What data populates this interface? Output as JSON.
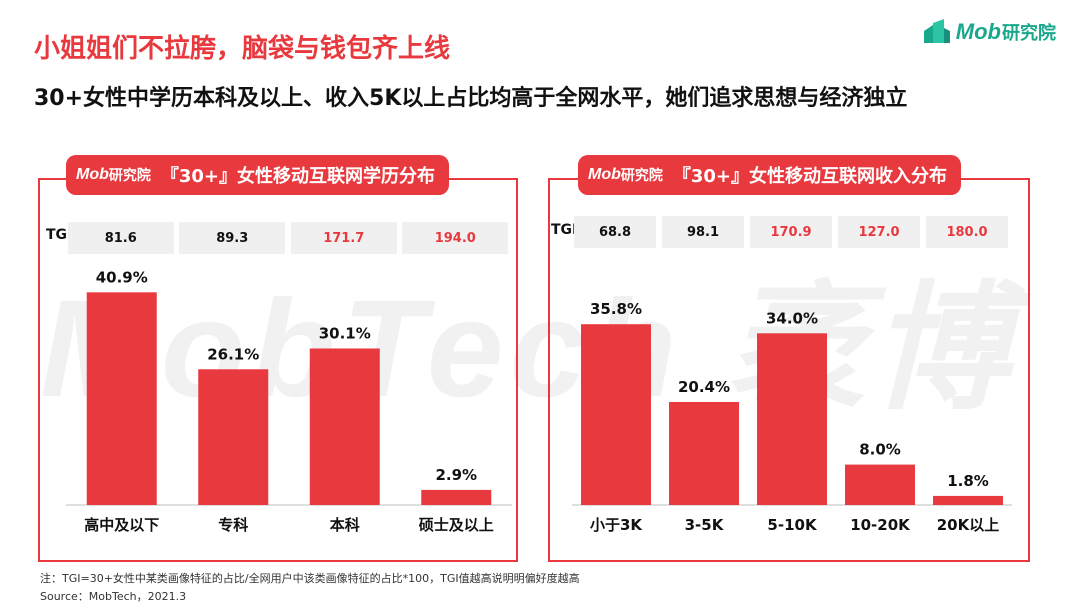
{
  "watermark": "MobTech 袤博",
  "brand": {
    "logo_text": "Mob",
    "logo_cn": "研究院"
  },
  "title": "小姐姐们不拉胯，脑袋与钱包齐上线",
  "subtitle": "30+女性中学历本科及以上、收入5K以上占比均高于全网水平，她们追求思想与经济独立",
  "colors": {
    "accent": "#e8393e",
    "brand_green": "#1aa88c",
    "tgi_high": "#e8393e",
    "tgi_normal": "#111111"
  },
  "chart_data": [
    {
      "type": "bar",
      "title": "『30+』女性移动互联网学历分布",
      "categories": [
        "高中及以下",
        "专科",
        "本科",
        "硕士及以上"
      ],
      "values": [
        40.9,
        26.1,
        30.1,
        2.9
      ],
      "value_labels": [
        "40.9%",
        "26.1%",
        "30.1%",
        "2.9%"
      ],
      "ylim": [
        0,
        45
      ],
      "tgi_label": "TGI",
      "tgi": [
        "81.6",
        "89.3",
        "171.7",
        "194.0"
      ],
      "tgi_high": [
        false,
        false,
        true,
        true
      ]
    },
    {
      "type": "bar",
      "title": "『30+』女性移动互联网收入分布",
      "categories": [
        "小于3K",
        "3-5K",
        "5-10K",
        "10-20K",
        "20K以上"
      ],
      "values": [
        35.8,
        20.4,
        34.0,
        8.0,
        1.8
      ],
      "value_labels": [
        "35.8%",
        "20.4%",
        "34.0%",
        "8.0%",
        "1.8%"
      ],
      "ylim": [
        0,
        45
      ],
      "tgi_label": "TGI",
      "tgi": [
        "68.8",
        "98.1",
        "170.9",
        "127.0",
        "180.0"
      ],
      "tgi_high": [
        false,
        false,
        true,
        true,
        true
      ]
    }
  ],
  "footnote": "注：TGI=30+女性中某类画像特征的占比/全网用户中该类画像特征的占比*100，TGI值越高说明明偏好度越高",
  "source": "Source：MobTech，2021.3"
}
